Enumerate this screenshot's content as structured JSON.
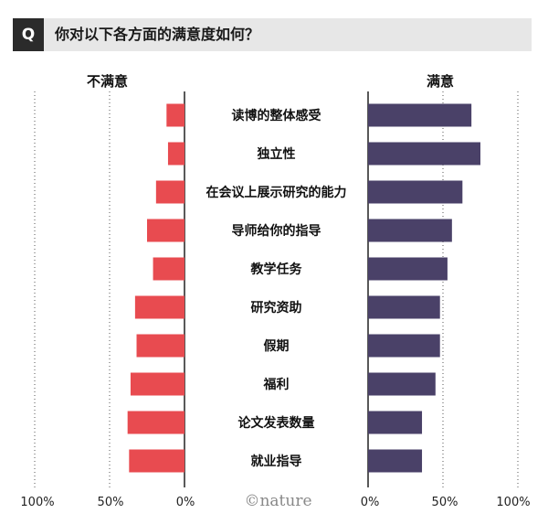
{
  "question": {
    "badge": "Q",
    "text": "你对以下各方面的满意度如何？"
  },
  "left_header": "不满意",
  "right_header": "满意",
  "credit": "©nature",
  "colors": {
    "dissatisfied": "#e84b50",
    "satisfied": "#4a4168"
  },
  "chart_data": {
    "type": "bar",
    "orientation": "horizontal-diverging",
    "categories": [
      "读博的整体感受",
      "独立性",
      "在会议上展示研究的能力",
      "导师给你的指导",
      "教学任务",
      "研究资助",
      "假期",
      "福利",
      "论文发表数量",
      "就业指导"
    ],
    "series": [
      {
        "name": "不满意",
        "values": [
          12,
          11,
          19,
          25,
          21,
          33,
          32,
          36,
          38,
          37
        ]
      },
      {
        "name": "满意",
        "values": [
          69,
          75,
          63,
          56,
          53,
          48,
          48,
          45,
          36,
          36
        ]
      }
    ],
    "left_axis": {
      "ticks": [
        "100%",
        "50%",
        "0%"
      ],
      "range": [
        100,
        0
      ]
    },
    "right_axis": {
      "ticks": [
        "0%",
        "50%",
        "100%"
      ],
      "range": [
        0,
        100
      ]
    },
    "grid": "dotted vertical at 50% and 100%"
  }
}
